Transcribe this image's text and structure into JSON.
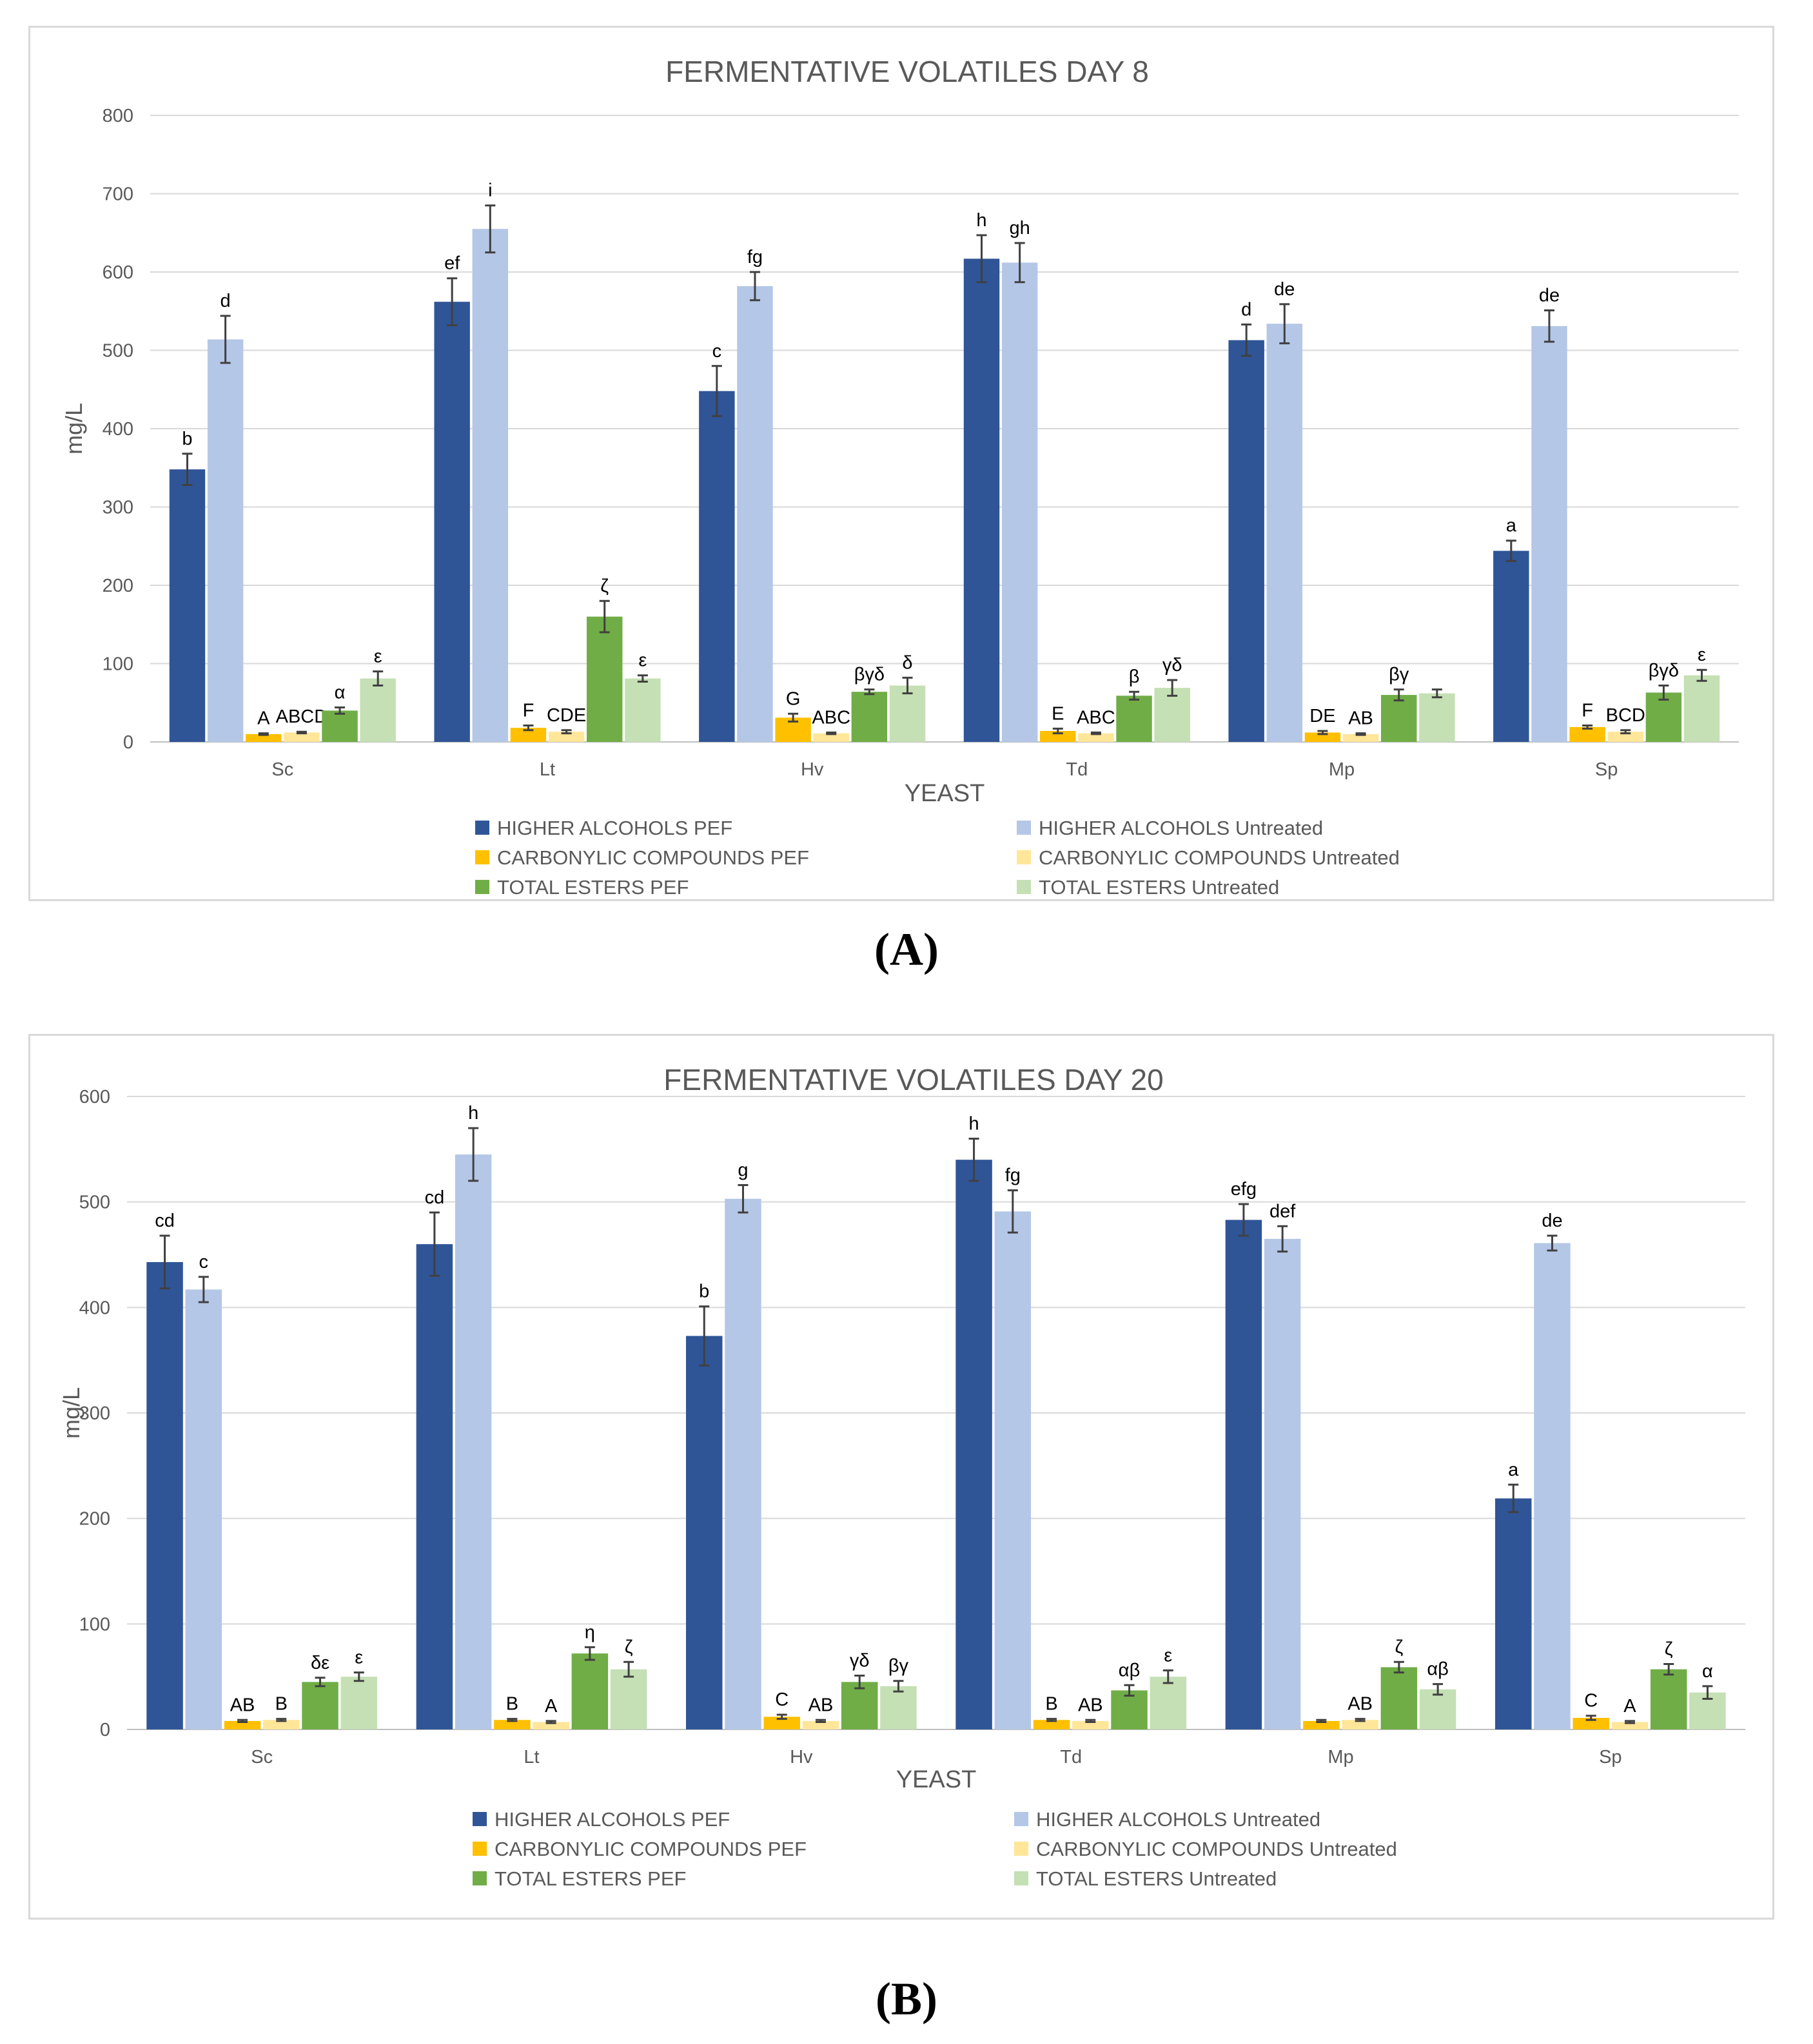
{
  "chart_data": [
    {
      "type": "bar",
      "title": "FERMENTATIVE VOLATILES DAY 8",
      "xlabel": "YEAST",
      "ylabel": "mg/L",
      "ylim": [
        0,
        800
      ],
      "yticks": [
        0,
        100,
        200,
        300,
        400,
        500,
        600,
        700,
        800
      ],
      "grid": true,
      "legend_position": "bottom",
      "panel_label": "(A)",
      "categories": [
        "Sc",
        "Lt",
        "Hv",
        "Td",
        "Mp",
        "Sp"
      ],
      "series": [
        {
          "name": "HIGHER ALCOHOLS PEF",
          "color": "#2f5597",
          "values": [
            348,
            562,
            448,
            617,
            513,
            244
          ],
          "errors": [
            20,
            30,
            32,
            30,
            20,
            13
          ],
          "labels": [
            "b",
            "ef",
            "c",
            "h",
            "d",
            "a"
          ]
        },
        {
          "name": "HIGHER ALCOHOLS Untreated",
          "color": "#b4c7e7",
          "values": [
            514,
            655,
            582,
            612,
            534,
            531
          ],
          "errors": [
            30,
            30,
            18,
            25,
            25,
            20
          ],
          "labels": [
            "d",
            "i",
            "fg",
            "gh",
            "de",
            "de"
          ]
        },
        {
          "name": "CARBONYLIC COMPOUNDS PEF",
          "color": "#ffc000",
          "values": [
            10,
            18,
            31,
            14,
            12,
            19
          ],
          "errors": [
            1,
            3,
            5,
            3,
            2,
            2
          ],
          "labels": [
            "A",
            "F",
            "G",
            "E",
            "DE",
            "F"
          ]
        },
        {
          "name": "CARBONYLIC COMPOUNDS Untreated",
          "color": "#ffe699",
          "values": [
            12,
            13,
            11,
            11,
            10,
            13
          ],
          "errors": [
            1,
            2,
            1,
            1,
            1,
            2
          ],
          "labels": [
            "ABCD",
            "CDE",
            "ABC",
            "ABC",
            "AB",
            "BCD"
          ]
        },
        {
          "name": "TOTAL ESTERS PEF",
          "color": "#70ad47",
          "values": [
            40,
            160,
            64,
            59,
            60,
            63
          ],
          "errors": [
            4,
            20,
            3,
            5,
            7,
            9
          ],
          "labels": [
            "α",
            "ζ",
            "βγδ",
            "β",
            "βγ",
            "βγδ"
          ]
        },
        {
          "name": "TOTAL ESTERS Untreated",
          "color": "#c5e0b4",
          "values": [
            81,
            81,
            72,
            69,
            62,
            85
          ],
          "errors": [
            9,
            4,
            10,
            10,
            5,
            7
          ],
          "labels": [
            "ε",
            "ε",
            "δ",
            "γδ",
            "",
            "ε"
          ]
        }
      ]
    },
    {
      "type": "bar",
      "title": "FERMENTATIVE VOLATILES DAY 20",
      "xlabel": "YEAST",
      "ylabel": "mg/L",
      "ylim": [
        0,
        600
      ],
      "yticks": [
        0,
        100,
        200,
        300,
        400,
        500,
        600
      ],
      "grid": true,
      "legend_position": "bottom",
      "panel_label": "(B)",
      "categories": [
        "Sc",
        "Lt",
        "Hv",
        "Td",
        "Mp",
        "Sp"
      ],
      "series": [
        {
          "name": "HIGHER ALCOHOLS PEF",
          "color": "#2f5597",
          "values": [
            443,
            460,
            373,
            540,
            483,
            219
          ],
          "errors": [
            25,
            30,
            28,
            20,
            15,
            13
          ],
          "labels": [
            "cd",
            "cd",
            "b",
            "h",
            "efg",
            "a"
          ]
        },
        {
          "name": "HIGHER ALCOHOLS Untreated",
          "color": "#b4c7e7",
          "values": [
            417,
            545,
            503,
            491,
            465,
            461
          ],
          "errors": [
            12,
            25,
            13,
            20,
            12,
            7
          ],
          "labels": [
            "c",
            "h",
            "g",
            "fg",
            "def",
            "de"
          ]
        },
        {
          "name": "CARBONYLIC COMPOUNDS PEF",
          "color": "#ffc000",
          "values": [
            8,
            9,
            12,
            9,
            8,
            11
          ],
          "errors": [
            1,
            1,
            2,
            1,
            1,
            2
          ],
          "labels": [
            "AB",
            "B",
            "C",
            "B",
            "",
            "C"
          ]
        },
        {
          "name": "CARBONYLIC COMPOUNDS Untreated",
          "color": "#ffe699",
          "values": [
            9,
            7,
            8,
            8,
            9,
            7
          ],
          "errors": [
            1,
            1,
            1,
            1,
            1,
            1
          ],
          "labels": [
            "B",
            "A",
            "AB",
            "AB",
            "AB",
            "A"
          ]
        },
        {
          "name": "TOTAL ESTERS PEF",
          "color": "#70ad47",
          "values": [
            45,
            72,
            45,
            37,
            59,
            57
          ],
          "errors": [
            4,
            6,
            6,
            5,
            5,
            5
          ],
          "labels": [
            "δε",
            "η",
            "γδ",
            "αβ",
            "ζ",
            "ζ"
          ]
        },
        {
          "name": "TOTAL ESTERS Untreated",
          "color": "#c5e0b4",
          "values": [
            50,
            57,
            41,
            50,
            38,
            35
          ],
          "errors": [
            4,
            7,
            5,
            6,
            5,
            6
          ],
          "labels": [
            "ε",
            "ζ",
            "βγ",
            "ε",
            "αβ",
            "α"
          ]
        }
      ]
    }
  ]
}
